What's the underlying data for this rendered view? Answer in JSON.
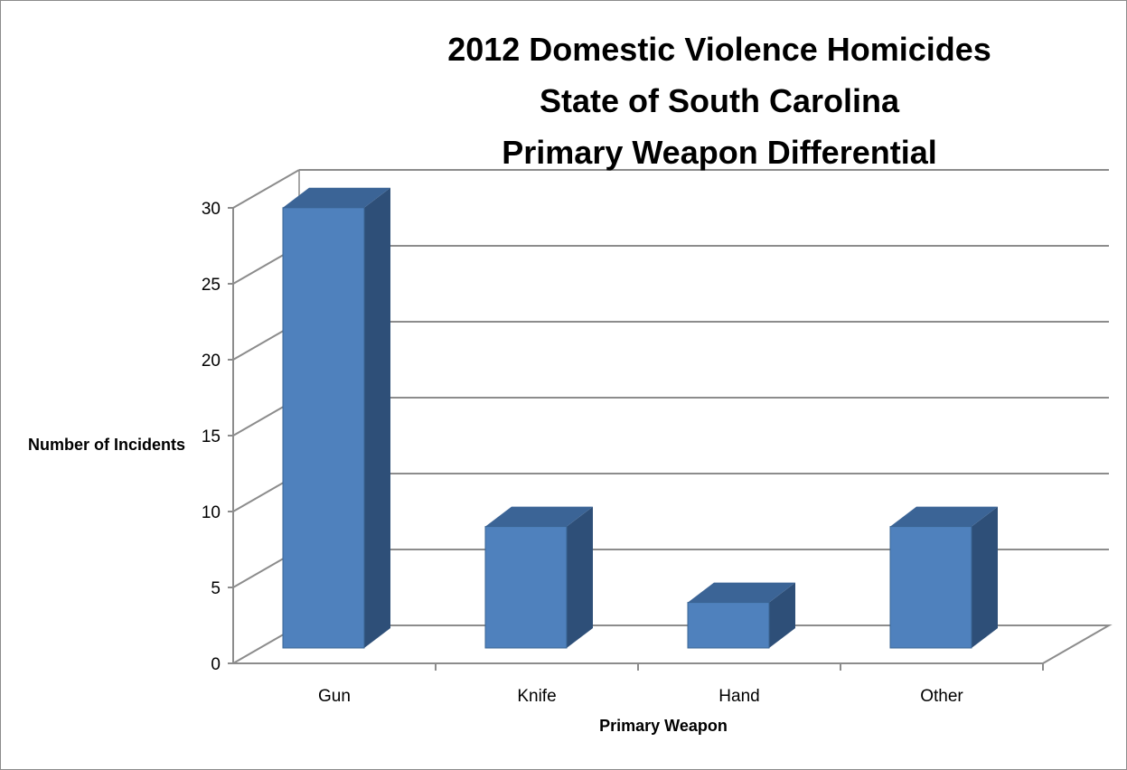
{
  "chart_data": {
    "type": "bar",
    "title_lines": [
      "2012 Domestic Violence Homicides",
      "State of South Carolina",
      "Primary Weapon Differential"
    ],
    "xlabel": "Primary Weapon",
    "ylabel": "Number of Incidents",
    "categories": [
      "Gun",
      "Knife",
      "Hand",
      "Other"
    ],
    "values": [
      29,
      8,
      3,
      8
    ],
    "ylim": [
      0,
      30
    ],
    "yticks": [
      0,
      5,
      10,
      15,
      20,
      25,
      30
    ],
    "grid": true,
    "legend": "none",
    "three_d": true,
    "colors": {
      "bar_front": "#4f81bd",
      "bar_side": "#2e4f78",
      "bar_top": "#3b6496",
      "bar_edge": "#3a6594",
      "gridline": "#8c8c8c",
      "axis": "#8c8c8c"
    }
  }
}
